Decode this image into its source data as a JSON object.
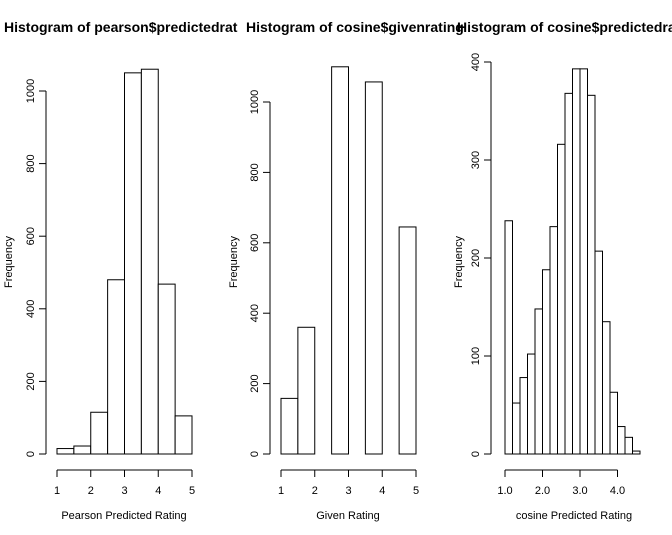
{
  "chart_data": [
    {
      "type": "bar",
      "title": "Histogram of pearson$predictedrat",
      "xlabel": "Pearson Predicted Rating",
      "ylabel": "Frequency",
      "xlim": [
        1,
        5
      ],
      "ylim": [
        0,
        1060
      ],
      "x_ticks": [
        "1",
        "2",
        "3",
        "4",
        "5"
      ],
      "y_ticks": [
        "0",
        "200",
        "400",
        "600",
        "800",
        "1000"
      ],
      "bins": [
        [
          1.0,
          1.5
        ],
        [
          1.5,
          2.0
        ],
        [
          2.0,
          2.5
        ],
        [
          2.5,
          3.0
        ],
        [
          3.0,
          3.5
        ],
        [
          3.5,
          4.0
        ],
        [
          4.0,
          4.5
        ],
        [
          4.5,
          5.0
        ]
      ],
      "values": [
        15,
        22,
        115,
        480,
        1050,
        1060,
        468,
        105
      ]
    },
    {
      "type": "bar",
      "title": "Histogram of cosine$givenrating",
      "xlabel": "Given Rating",
      "ylabel": "Frequency",
      "xlim": [
        1,
        5
      ],
      "ylim": [
        0,
        1100
      ],
      "x_ticks": [
        "1",
        "2",
        "3",
        "4",
        "5"
      ],
      "y_ticks": [
        "0",
        "200",
        "400",
        "600",
        "800",
        "1000"
      ],
      "bins": [
        [
          1.0,
          1.5
        ],
        [
          1.5,
          2.0
        ],
        [
          2.5,
          3.0
        ],
        [
          3.5,
          4.0
        ],
        [
          4.5,
          5.0
        ]
      ],
      "values": [
        158,
        360,
        1100,
        1057,
        645
      ]
    },
    {
      "type": "bar",
      "title": "Histogram of cosine$predictedrati",
      "xlabel": "cosine Predicted Rating",
      "ylabel": "Frequency",
      "xlim": [
        1.0,
        4.6
      ],
      "ylim": [
        0,
        400
      ],
      "x_ticks": [
        "1.0",
        "2.0",
        "3.0",
        "4.0"
      ],
      "y_ticks": [
        "0",
        "100",
        "200",
        "300",
        "400"
      ],
      "bin_start": 1.0,
      "bin_width": 0.2,
      "values": [
        238,
        52,
        78,
        102,
        148,
        188,
        232,
        316,
        368,
        393,
        393,
        366,
        207,
        135,
        63,
        28,
        17,
        3
      ]
    }
  ]
}
